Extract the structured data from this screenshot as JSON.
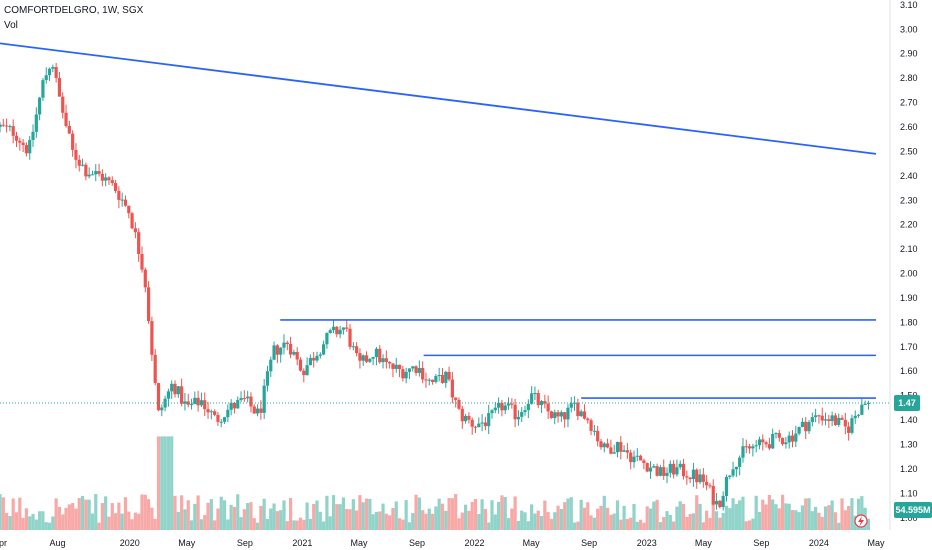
{
  "header": {
    "symbol_line": "COMFORTDELGRO, 1W, SGX",
    "volume_label": "Vol"
  },
  "colors": {
    "up": "#26a69a",
    "down": "#ef5350",
    "vol_up": "#8fd3c9",
    "vol_down": "#f7a9a7",
    "trendline": "#2962ff",
    "last_price_badge": "#26a69a",
    "volume_badge": "#26a69a"
  },
  "price_badge": "1.47",
  "volume_badge": "54.595M",
  "chart_data": {
    "type": "candlestick",
    "y_axis": {
      "ylim": [
        0.95,
        3.12
      ],
      "ticks": [
        "3.10",
        "3.00",
        "2.90",
        "2.80",
        "2.70",
        "2.60",
        "2.50",
        "2.40",
        "2.30",
        "2.20",
        "2.10",
        "2.00",
        "1.90",
        "1.80",
        "1.70",
        "1.60",
        "1.50",
        "1.40",
        "1.30",
        "1.20",
        "1.10",
        "1.00"
      ]
    },
    "x_axis": {
      "ticks": [
        "Apr",
        "Aug",
        "2020",
        "May",
        "Sep",
        "2021",
        "May",
        "Sep",
        "2022",
        "May",
        "Sep",
        "2023",
        "May",
        "Sep",
        "2024",
        "May"
      ]
    },
    "last_price": 1.47,
    "last_volume": "54.595M",
    "anchors": [
      {
        "t": "2019-04",
        "p": 2.6
      },
      {
        "t": "2019-05",
        "p": 2.58
      },
      {
        "t": "2019-06",
        "p": 2.5
      },
      {
        "t": "2019-07",
        "p": 2.78
      },
      {
        "t": "2019-07-20",
        "p": 2.88
      },
      {
        "t": "2019-08",
        "p": 2.75
      },
      {
        "t": "2019-09",
        "p": 2.5
      },
      {
        "t": "2019-10",
        "p": 2.42
      },
      {
        "t": "2019-11",
        "p": 2.4
      },
      {
        "t": "2019-12",
        "p": 2.35
      },
      {
        "t": "2020-01",
        "p": 2.25
      },
      {
        "t": "2020-02",
        "p": 2.0
      },
      {
        "t": "2020-03",
        "p": 1.42
      },
      {
        "t": "2020-04",
        "p": 1.55
      },
      {
        "t": "2020-05",
        "p": 1.45
      },
      {
        "t": "2020-06",
        "p": 1.48
      },
      {
        "t": "2020-07",
        "p": 1.4
      },
      {
        "t": "2020-08",
        "p": 1.45
      },
      {
        "t": "2020-09",
        "p": 1.48
      },
      {
        "t": "2020-10",
        "p": 1.42
      },
      {
        "t": "2020-11",
        "p": 1.68
      },
      {
        "t": "2020-12",
        "p": 1.72
      },
      {
        "t": "2021-01",
        "p": 1.6
      },
      {
        "t": "2021-02",
        "p": 1.68
      },
      {
        "t": "2021-03",
        "p": 1.75
      },
      {
        "t": "2021-04",
        "p": 1.78
      },
      {
        "t": "2021-05",
        "p": 1.62
      },
      {
        "t": "2021-06",
        "p": 1.68
      },
      {
        "t": "2021-07",
        "p": 1.62
      },
      {
        "t": "2021-08",
        "p": 1.6
      },
      {
        "t": "2021-09",
        "p": 1.62
      },
      {
        "t": "2021-10",
        "p": 1.55
      },
      {
        "t": "2021-11",
        "p": 1.58
      },
      {
        "t": "2021-12",
        "p": 1.42
      },
      {
        "t": "2022-01",
        "p": 1.38
      },
      {
        "t": "2022-02",
        "p": 1.4
      },
      {
        "t": "2022-03",
        "p": 1.46
      },
      {
        "t": "2022-04",
        "p": 1.42
      },
      {
        "t": "2022-05",
        "p": 1.5
      },
      {
        "t": "2022-06",
        "p": 1.44
      },
      {
        "t": "2022-07",
        "p": 1.4
      },
      {
        "t": "2022-08",
        "p": 1.46
      },
      {
        "t": "2022-09",
        "p": 1.4
      },
      {
        "t": "2022-10",
        "p": 1.28
      },
      {
        "t": "2022-11",
        "p": 1.3
      },
      {
        "t": "2022-12",
        "p": 1.25
      },
      {
        "t": "2023-01",
        "p": 1.22
      },
      {
        "t": "2023-02",
        "p": 1.18
      },
      {
        "t": "2023-03",
        "p": 1.2
      },
      {
        "t": "2023-04",
        "p": 1.18
      },
      {
        "t": "2023-05",
        "p": 1.15
      },
      {
        "t": "2023-06",
        "p": 1.05
      },
      {
        "t": "2023-07",
        "p": 1.22
      },
      {
        "t": "2023-08",
        "p": 1.28
      },
      {
        "t": "2023-09",
        "p": 1.3
      },
      {
        "t": "2023-10",
        "p": 1.32
      },
      {
        "t": "2023-11",
        "p": 1.33
      },
      {
        "t": "2023-12",
        "p": 1.38
      },
      {
        "t": "2024-01",
        "p": 1.42
      },
      {
        "t": "2024-02",
        "p": 1.4
      },
      {
        "t": "2024-03",
        "p": 1.36
      },
      {
        "t": "2024-04",
        "p": 1.47
      }
    ],
    "horizontal_levels": [
      {
        "from": "2020-11",
        "to": "2024-05",
        "price": 1.81
      },
      {
        "from": "2021-09",
        "to": "2024-05",
        "price": 1.665
      },
      {
        "from": "2022-08",
        "to": "2024-05",
        "price": 1.49
      }
    ],
    "trendline": {
      "from": {
        "t": "2019-03",
        "p": 2.95
      },
      "to": {
        "t": "2024-05",
        "p": 2.49
      }
    }
  }
}
